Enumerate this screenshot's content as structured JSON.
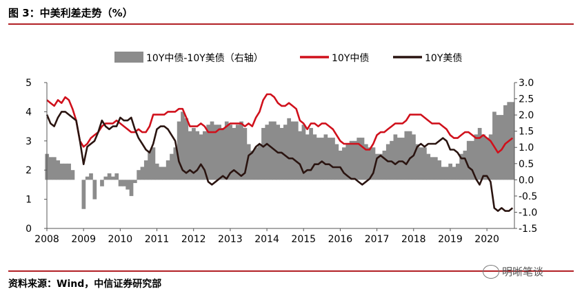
{
  "header": {
    "title": "图 3：中美利差走势（%）"
  },
  "footer": {
    "source": "资料来源：Wind，中信证券研究部",
    "watermark": "明晰笔谈"
  },
  "chart_data": {
    "type": "line",
    "title": "",
    "legend": {
      "placement": "top",
      "items": [
        {
          "name": "10Y中债-10Y美债（右轴）",
          "kind": "area",
          "color": "#8c8c8c"
        },
        {
          "name": "10Y中债",
          "kind": "line",
          "color": "#d0101b"
        },
        {
          "name": "10Y美债",
          "kind": "line",
          "color": "#2a1410"
        }
      ]
    },
    "x_ticks": [
      "2008",
      "2009",
      "2010",
      "2011",
      "2012",
      "2013",
      "2014",
      "2015",
      "2016",
      "2017",
      "2018",
      "2019",
      "2020"
    ],
    "x_range": [
      2008.0,
      2020.75
    ],
    "left_axis": {
      "range": [
        0,
        5
      ],
      "ticks": [
        "0",
        "1",
        "2",
        "3",
        "4",
        "5"
      ]
    },
    "right_axis": {
      "range": [
        -1.5,
        3.0
      ],
      "ticks": [
        "-1.5",
        "-1.0",
        "-0.5",
        "0.0",
        "0.5",
        "1.0",
        "1.5",
        "2.0",
        "2.5",
        "3.0"
      ]
    },
    "grid": false,
    "series": [
      {
        "name": "10Y中债",
        "axis": "left",
        "color": "#d0101b",
        "x": [
          2008.0,
          2008.1,
          2008.2,
          2008.3,
          2008.4,
          2008.5,
          2008.6,
          2008.7,
          2008.8,
          2008.9,
          2009.0,
          2009.1,
          2009.2,
          2009.3,
          2009.4,
          2009.5,
          2009.6,
          2009.7,
          2009.8,
          2009.9,
          2010.0,
          2010.1,
          2010.2,
          2010.3,
          2010.4,
          2010.5,
          2010.6,
          2010.7,
          2010.8,
          2010.9,
          2011.0,
          2011.1,
          2011.2,
          2011.3,
          2011.4,
          2011.5,
          2011.6,
          2011.7,
          2011.8,
          2011.9,
          2012.0,
          2012.1,
          2012.2,
          2012.3,
          2012.4,
          2012.5,
          2012.6,
          2012.7,
          2012.8,
          2012.9,
          2013.0,
          2013.1,
          2013.2,
          2013.3,
          2013.4,
          2013.5,
          2013.6,
          2013.7,
          2013.8,
          2013.9,
          2014.0,
          2014.1,
          2014.2,
          2014.3,
          2014.4,
          2014.5,
          2014.6,
          2014.7,
          2014.8,
          2014.9,
          2015.0,
          2015.1,
          2015.2,
          2015.3,
          2015.4,
          2015.5,
          2015.6,
          2015.7,
          2015.8,
          2015.9,
          2016.0,
          2016.1,
          2016.2,
          2016.3,
          2016.4,
          2016.5,
          2016.6,
          2016.7,
          2016.8,
          2016.9,
          2017.0,
          2017.1,
          2017.2,
          2017.3,
          2017.4,
          2017.5,
          2017.6,
          2017.7,
          2017.8,
          2017.9,
          2018.0,
          2018.1,
          2018.2,
          2018.3,
          2018.4,
          2018.5,
          2018.6,
          2018.7,
          2018.8,
          2018.9,
          2019.0,
          2019.1,
          2019.2,
          2019.3,
          2019.4,
          2019.5,
          2019.6,
          2019.7,
          2019.8,
          2019.9,
          2020.0,
          2020.1,
          2020.2,
          2020.3,
          2020.4,
          2020.5,
          2020.6,
          2020.7
        ],
        "values": [
          4.4,
          4.3,
          4.2,
          4.4,
          4.3,
          4.5,
          4.4,
          4.1,
          3.7,
          3.0,
          2.8,
          2.9,
          3.1,
          3.2,
          3.3,
          3.5,
          3.6,
          3.6,
          3.6,
          3.7,
          3.6,
          3.5,
          3.4,
          3.3,
          3.3,
          3.4,
          3.3,
          3.3,
          3.5,
          3.9,
          3.9,
          3.9,
          3.9,
          4.0,
          4.0,
          4.0,
          4.1,
          4.1,
          3.8,
          3.5,
          3.5,
          3.5,
          3.6,
          3.5,
          3.3,
          3.3,
          3.3,
          3.4,
          3.4,
          3.5,
          3.6,
          3.6,
          3.6,
          3.6,
          3.5,
          3.6,
          3.5,
          3.8,
          4.0,
          4.4,
          4.6,
          4.6,
          4.5,
          4.3,
          4.2,
          4.2,
          4.3,
          4.2,
          4.1,
          3.7,
          3.6,
          3.4,
          3.6,
          3.6,
          3.5,
          3.6,
          3.6,
          3.5,
          3.4,
          3.2,
          3.0,
          2.9,
          2.9,
          2.9,
          2.9,
          2.9,
          2.8,
          2.7,
          2.7,
          2.9,
          3.2,
          3.3,
          3.3,
          3.4,
          3.5,
          3.6,
          3.6,
          3.6,
          3.7,
          3.9,
          3.9,
          3.9,
          3.9,
          3.8,
          3.7,
          3.6,
          3.6,
          3.6,
          3.5,
          3.4,
          3.2,
          3.1,
          3.1,
          3.2,
          3.3,
          3.3,
          3.2,
          3.1,
          3.1,
          3.2,
          3.1,
          3.0,
          2.8,
          2.6,
          2.7,
          2.9,
          3.0,
          3.1
        ]
      },
      {
        "name": "10Y美债",
        "axis": "left",
        "color": "#2a1410",
        "x": [
          2008.0,
          2008.1,
          2008.2,
          2008.3,
          2008.4,
          2008.5,
          2008.6,
          2008.7,
          2008.8,
          2008.9,
          2009.0,
          2009.1,
          2009.2,
          2009.3,
          2009.4,
          2009.5,
          2009.6,
          2009.7,
          2009.8,
          2009.9,
          2010.0,
          2010.1,
          2010.2,
          2010.3,
          2010.4,
          2010.5,
          2010.6,
          2010.7,
          2010.8,
          2010.9,
          2011.0,
          2011.1,
          2011.2,
          2011.3,
          2011.4,
          2011.5,
          2011.6,
          2011.7,
          2011.8,
          2011.9,
          2012.0,
          2012.1,
          2012.2,
          2012.3,
          2012.4,
          2012.5,
          2012.6,
          2012.7,
          2012.8,
          2012.9,
          2013.0,
          2013.1,
          2013.2,
          2013.3,
          2013.4,
          2013.5,
          2013.6,
          2013.7,
          2013.8,
          2013.9,
          2014.0,
          2014.1,
          2014.2,
          2014.3,
          2014.4,
          2014.5,
          2014.6,
          2014.7,
          2014.8,
          2014.9,
          2015.0,
          2015.1,
          2015.2,
          2015.3,
          2015.4,
          2015.5,
          2015.6,
          2015.7,
          2015.8,
          2015.9,
          2016.0,
          2016.1,
          2016.2,
          2016.3,
          2016.4,
          2016.5,
          2016.6,
          2016.7,
          2016.8,
          2016.9,
          2017.0,
          2017.1,
          2017.2,
          2017.3,
          2017.4,
          2017.5,
          2017.6,
          2017.7,
          2017.8,
          2017.9,
          2018.0,
          2018.1,
          2018.2,
          2018.3,
          2018.4,
          2018.5,
          2018.6,
          2018.7,
          2018.8,
          2018.9,
          2019.0,
          2019.1,
          2019.2,
          2019.3,
          2019.4,
          2019.5,
          2019.6,
          2019.7,
          2019.8,
          2019.9,
          2020.0,
          2020.1,
          2020.2,
          2020.3,
          2020.4,
          2020.5,
          2020.6,
          2020.7
        ],
        "values": [
          3.9,
          3.6,
          3.5,
          3.8,
          4.0,
          4.0,
          3.9,
          3.8,
          3.7,
          3.0,
          2.2,
          2.8,
          2.9,
          3.0,
          3.3,
          3.7,
          3.5,
          3.4,
          3.5,
          3.5,
          3.8,
          3.7,
          3.7,
          3.8,
          3.4,
          3.1,
          2.9,
          2.7,
          2.6,
          2.9,
          3.4,
          3.5,
          3.5,
          3.4,
          3.2,
          3.0,
          2.3,
          2.0,
          1.9,
          2.0,
          1.9,
          2.0,
          2.2,
          2.0,
          1.6,
          1.5,
          1.6,
          1.7,
          1.8,
          1.7,
          1.9,
          2.0,
          1.9,
          1.8,
          1.9,
          2.5,
          2.6,
          2.8,
          2.9,
          2.8,
          2.9,
          2.8,
          2.7,
          2.6,
          2.6,
          2.5,
          2.4,
          2.4,
          2.3,
          2.2,
          1.9,
          2.0,
          2.0,
          2.2,
          2.2,
          2.3,
          2.2,
          2.2,
          2.1,
          2.1,
          2.1,
          1.9,
          1.8,
          1.7,
          1.7,
          1.6,
          1.5,
          1.6,
          1.7,
          1.9,
          2.4,
          2.5,
          2.4,
          2.3,
          2.3,
          2.2,
          2.3,
          2.3,
          2.2,
          2.4,
          2.5,
          2.8,
          2.9,
          2.8,
          2.9,
          2.9,
          2.9,
          3.0,
          3.1,
          3.0,
          2.7,
          2.7,
          2.6,
          2.4,
          2.4,
          2.1,
          2.0,
          1.7,
          1.5,
          1.8,
          1.8,
          1.6,
          0.7,
          0.6,
          0.7,
          0.6,
          0.6,
          0.7
        ]
      },
      {
        "name": "10Y中债-10Y美债（右轴）",
        "axis": "right",
        "type": "area",
        "color": "#8c8c8c",
        "x": [
          2008.0,
          2008.1,
          2008.2,
          2008.3,
          2008.4,
          2008.5,
          2008.6,
          2008.7,
          2008.8,
          2008.9,
          2009.0,
          2009.1,
          2009.2,
          2009.3,
          2009.4,
          2009.5,
          2009.6,
          2009.7,
          2009.8,
          2009.9,
          2010.0,
          2010.1,
          2010.2,
          2010.3,
          2010.4,
          2010.5,
          2010.6,
          2010.7,
          2010.8,
          2010.9,
          2011.0,
          2011.1,
          2011.2,
          2011.3,
          2011.4,
          2011.5,
          2011.6,
          2011.7,
          2011.8,
          2011.9,
          2012.0,
          2012.1,
          2012.2,
          2012.3,
          2012.4,
          2012.5,
          2012.6,
          2012.7,
          2012.8,
          2012.9,
          2013.0,
          2013.1,
          2013.2,
          2013.3,
          2013.4,
          2013.5,
          2013.6,
          2013.7,
          2013.8,
          2013.9,
          2014.0,
          2014.1,
          2014.2,
          2014.3,
          2014.4,
          2014.5,
          2014.6,
          2014.7,
          2014.8,
          2014.9,
          2015.0,
          2015.1,
          2015.2,
          2015.3,
          2015.4,
          2015.5,
          2015.6,
          2015.7,
          2015.8,
          2015.9,
          2016.0,
          2016.1,
          2016.2,
          2016.3,
          2016.4,
          2016.5,
          2016.6,
          2016.7,
          2016.8,
          2016.9,
          2017.0,
          2017.1,
          2017.2,
          2017.3,
          2017.4,
          2017.5,
          2017.6,
          2017.7,
          2017.8,
          2017.9,
          2018.0,
          2018.1,
          2018.2,
          2018.3,
          2018.4,
          2018.5,
          2018.6,
          2018.7,
          2018.8,
          2018.9,
          2019.0,
          2019.1,
          2019.2,
          2019.3,
          2019.4,
          2019.5,
          2019.6,
          2019.7,
          2019.8,
          2019.9,
          2020.0,
          2020.1,
          2020.2,
          2020.3,
          2020.4,
          2020.5,
          2020.6,
          2020.7
        ],
        "values": [
          0.8,
          0.7,
          0.7,
          0.6,
          0.5,
          0.5,
          0.5,
          0.3,
          0.0,
          0.0,
          -0.9,
          0.1,
          0.2,
          -0.6,
          0.0,
          -0.2,
          0.1,
          0.2,
          0.1,
          0.2,
          -0.2,
          -0.2,
          -0.3,
          -0.5,
          -0.1,
          0.3,
          0.4,
          0.6,
          0.9,
          1.0,
          0.5,
          0.4,
          0.4,
          0.6,
          0.8,
          1.0,
          1.8,
          2.1,
          1.9,
          1.5,
          1.6,
          1.5,
          1.4,
          1.5,
          1.7,
          1.8,
          1.7,
          1.7,
          1.6,
          1.8,
          1.7,
          1.6,
          1.7,
          1.8,
          1.6,
          1.1,
          0.9,
          1.0,
          1.1,
          1.6,
          1.7,
          1.8,
          1.8,
          1.7,
          1.6,
          1.7,
          1.9,
          1.8,
          1.8,
          1.5,
          1.7,
          1.4,
          1.6,
          1.4,
          1.3,
          1.3,
          1.4,
          1.3,
          1.3,
          1.1,
          0.9,
          1.0,
          1.1,
          1.2,
          1.2,
          1.3,
          1.3,
          1.1,
          1.0,
          1.0,
          0.8,
          0.8,
          0.9,
          1.1,
          1.2,
          1.4,
          1.3,
          1.3,
          1.5,
          1.5,
          1.4,
          1.1,
          1.0,
          1.0,
          0.8,
          0.7,
          0.7,
          0.6,
          0.4,
          0.4,
          0.5,
          0.4,
          0.5,
          0.8,
          0.9,
          1.2,
          1.2,
          1.4,
          1.6,
          1.4,
          1.3,
          1.4,
          2.1,
          2.0,
          2.0,
          2.3,
          2.4,
          2.4
        ]
      }
    ]
  }
}
